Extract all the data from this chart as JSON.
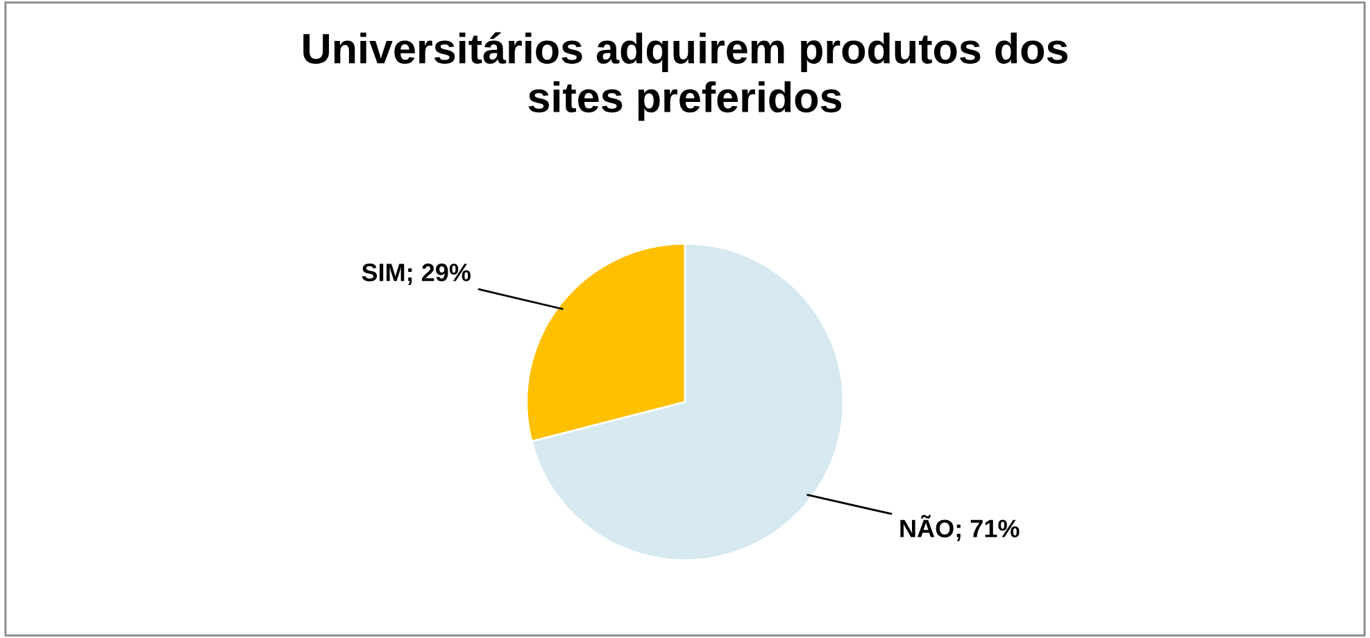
{
  "chart_data": {
    "type": "pie",
    "title": "Universitários adquirem produtos dos sites preferidos",
    "categories": [
      "NÃO",
      "SIM"
    ],
    "values": [
      71,
      29
    ],
    "colors": [
      "#d6e8f0",
      "#ffc000"
    ],
    "value_labels": [
      "71%",
      "29%"
    ]
  }
}
